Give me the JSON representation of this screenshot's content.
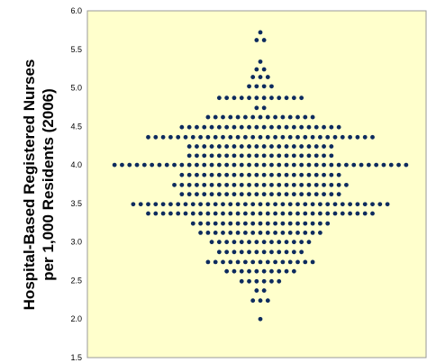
{
  "chart_data": {
    "type": "scatter",
    "subtype": "beeswarm / dot plot",
    "title": "",
    "xlabel": "",
    "ylabel_lines": [
      "Hospital-Based Registered Nurses",
      "per 1,000 Residents (2006)"
    ],
    "ylim": [
      1.5,
      6.0
    ],
    "yticks": [
      "1.5",
      "2.0",
      "2.5",
      "3.0",
      "3.5",
      "4.0",
      "4.5",
      "5.0",
      "5.5",
      "6.0"
    ],
    "grid": false,
    "legend": "none",
    "colors": {
      "plot_background": "#ffffcc",
      "plot_border": "#999999",
      "dot": "#0d2b5e"
    },
    "rows": [
      {
        "y": 5.72,
        "count": 1
      },
      {
        "y": 5.62,
        "count": 2
      },
      {
        "y": 5.34,
        "count": 1
      },
      {
        "y": 5.24,
        "count": 2
      },
      {
        "y": 5.14,
        "count": 3
      },
      {
        "y": 5.02,
        "count": 4
      },
      {
        "y": 4.87,
        "count": 12
      },
      {
        "y": 4.74,
        "count": 2
      },
      {
        "y": 4.62,
        "count": 15
      },
      {
        "y": 4.49,
        "count": 22
      },
      {
        "y": 4.36,
        "count": 31
      },
      {
        "y": 4.24,
        "count": 20
      },
      {
        "y": 4.12,
        "count": 20
      },
      {
        "y": 4.0,
        "count": 40
      },
      {
        "y": 3.87,
        "count": 22
      },
      {
        "y": 3.74,
        "count": 24
      },
      {
        "y": 3.62,
        "count": 22
      },
      {
        "y": 3.49,
        "count": 35
      },
      {
        "y": 3.37,
        "count": 31
      },
      {
        "y": 3.24,
        "count": 19
      },
      {
        "y": 3.12,
        "count": 17
      },
      {
        "y": 3.0,
        "count": 14
      },
      {
        "y": 2.87,
        "count": 12
      },
      {
        "y": 2.74,
        "count": 15
      },
      {
        "y": 2.62,
        "count": 10
      },
      {
        "y": 2.49,
        "count": 6
      },
      {
        "y": 2.37,
        "count": 2
      },
      {
        "y": 2.24,
        "count": 3
      },
      {
        "y": 2.0,
        "count": 1
      }
    ]
  }
}
